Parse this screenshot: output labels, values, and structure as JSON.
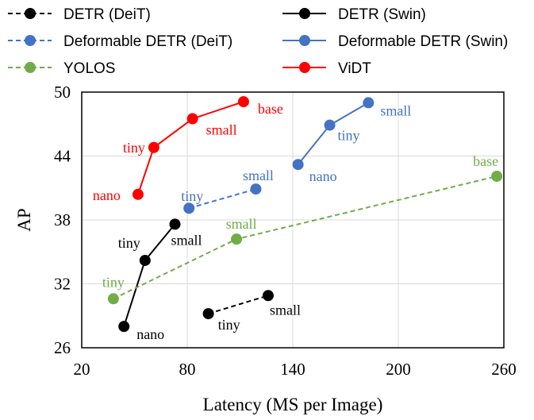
{
  "chart_data": {
    "type": "line",
    "xlabel": "Latency (MS per Image)",
    "ylabel": "AP",
    "xlim": [
      20,
      260
    ],
    "ylim": [
      26,
      50
    ],
    "xticks": [
      20,
      80,
      140,
      200,
      260
    ],
    "yticks": [
      26,
      32,
      38,
      44,
      50
    ],
    "grid": "horizontal and vertical",
    "legend_position": "top",
    "series": [
      {
        "name": "DETR (DeiT)",
        "color": "#000000",
        "dashed": true,
        "points": [
          {
            "x": 92,
            "y": 29.2,
            "label": "tiny"
          },
          {
            "x": 126,
            "y": 30.9,
            "label": "small"
          }
        ]
      },
      {
        "name": "DETR (Swin)",
        "color": "#000000",
        "dashed": false,
        "points": [
          {
            "x": 44,
            "y": 28.0,
            "label": "nano"
          },
          {
            "x": 56,
            "y": 34.2,
            "label": "tiny"
          },
          {
            "x": 73,
            "y": 37.6,
            "label": "small"
          }
        ]
      },
      {
        "name": "Deformable DETR (DeiT)",
        "color": "#4472c4",
        "dashed": true,
        "points": [
          {
            "x": 81,
            "y": 39.1,
            "label": "tiny"
          },
          {
            "x": 119,
            "y": 40.9,
            "label": "small"
          }
        ]
      },
      {
        "name": "Deformable DETR (Swin)",
        "color": "#4472c4",
        "dashed": false,
        "points": [
          {
            "x": 143,
            "y": 43.2,
            "label": "nano"
          },
          {
            "x": 161,
            "y": 46.9,
            "label": "tiny"
          },
          {
            "x": 183,
            "y": 49.0,
            "label": "small"
          }
        ]
      },
      {
        "name": "YOLOS",
        "color": "#70ad47",
        "dashed": true,
        "points": [
          {
            "x": 38,
            "y": 30.6,
            "label": "tiny"
          },
          {
            "x": 108,
            "y": 36.2,
            "label": "small"
          },
          {
            "x": 256,
            "y": 42.1,
            "label": "base"
          }
        ]
      },
      {
        "name": "ViDT",
        "color": "#ff0000",
        "dashed": false,
        "points": [
          {
            "x": 52,
            "y": 40.4,
            "label": "nano"
          },
          {
            "x": 61,
            "y": 44.8,
            "label": "tiny"
          },
          {
            "x": 83,
            "y": 47.5,
            "label": "small"
          },
          {
            "x": 112,
            "y": 49.1,
            "label": "base"
          }
        ]
      }
    ]
  }
}
